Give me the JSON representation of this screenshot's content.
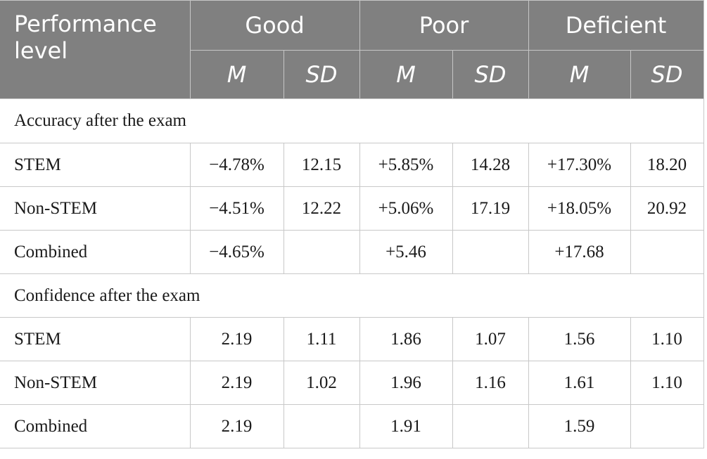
{
  "header": {
    "performance_level": "Performance level",
    "groups": [
      "Good",
      "Poor",
      "Deficient"
    ],
    "stats": [
      "M",
      "SD",
      "M",
      "SD",
      "M",
      "SD"
    ]
  },
  "sections": [
    {
      "title": "Accuracy after the exam",
      "rows": [
        {
          "label": "STEM",
          "values": [
            "−4.78%",
            "12.15",
            "+5.85%",
            "14.28",
            "+17.30%",
            "18.20"
          ]
        },
        {
          "label": "Non-STEM",
          "values": [
            "−4.51%",
            "12.22",
            "+5.06%",
            "17.19",
            "+18.05%",
            "20.92"
          ]
        },
        {
          "label": "Combined",
          "values": [
            "−4.65%",
            "",
            "+5.46",
            "",
            "+17.68",
            ""
          ]
        }
      ]
    },
    {
      "title": "Confidence after the exam",
      "rows": [
        {
          "label": "STEM",
          "values": [
            "2.19",
            "1.11",
            "1.86",
            "1.07",
            "1.56",
            "1.10"
          ]
        },
        {
          "label": "Non-STEM",
          "values": [
            "2.19",
            "1.02",
            "1.96",
            "1.16",
            "1.61",
            "1.10"
          ]
        },
        {
          "label": "Combined",
          "values": [
            "2.19",
            "",
            "1.91",
            "",
            "1.59",
            ""
          ]
        }
      ]
    }
  ]
}
